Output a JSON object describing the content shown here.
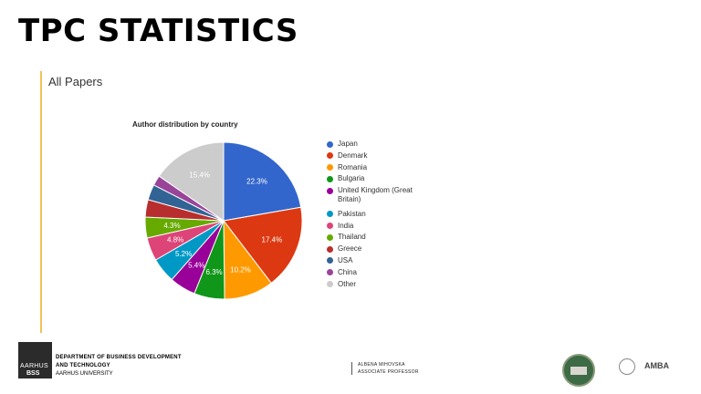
{
  "slide": {
    "title": "TPC STATISTICS",
    "section": "All Papers"
  },
  "chart_data": {
    "type": "pie",
    "title": "Author distribution by country",
    "legend_position": "right",
    "categories": [
      "Japan",
      "Denmark",
      "Romania",
      "Bulgaria",
      "United Kingdom (Great Britain)",
      "Pakistan",
      "India",
      "Thailand",
      "Greece",
      "USA",
      "China",
      "Other"
    ],
    "values": [
      22.3,
      17.4,
      10.2,
      6.3,
      5.4,
      5.2,
      4.8,
      4.3,
      3.6,
      3.2,
      2.1,
      15.4
    ],
    "labels": [
      "22.3%",
      "17.4%",
      "10.2%",
      "6.3%",
      "5.4%",
      "5.2%",
      "4.8%",
      "4.3%",
      "",
      "",
      "",
      "15.4%"
    ],
    "colors": [
      "#3366cc",
      "#dc3912",
      "#ff9900",
      "#109618",
      "#990099",
      "#0099c6",
      "#dd4477",
      "#66aa00",
      "#b82e2e",
      "#316395",
      "#994499",
      "#cccccc"
    ]
  },
  "footer": {
    "logo_line1": "AARHUS",
    "logo_line2": "BSS",
    "dept_line1": "DEPARTMENT OF BUSINESS DEVELOPMENT",
    "dept_line2": "AND TECHNOLOGY",
    "dept_line3": "AARHUS UNIVERSITY",
    "person_name": "ALBENA  MIHOVSKA",
    "person_title": "ASSOCIATE PROFESSOR",
    "logo3_text": "AMBA"
  }
}
